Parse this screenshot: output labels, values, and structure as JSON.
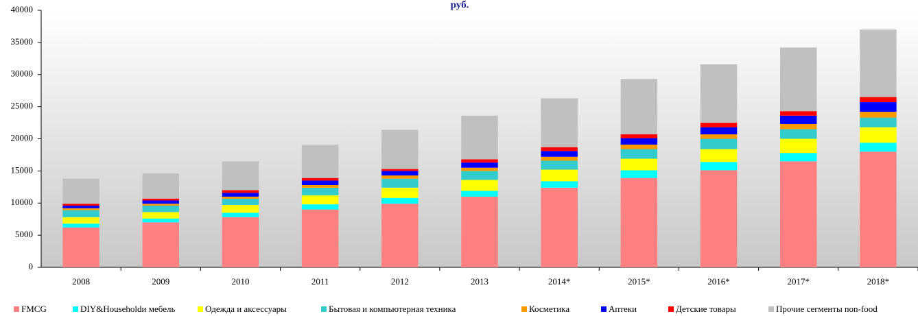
{
  "chart_data": {
    "type": "stacked_bar",
    "title": "руб.",
    "categories": [
      "2008",
      "2009",
      "2010",
      "2011",
      "2012",
      "2013",
      "2014*",
      "2015*",
      "2016*",
      "2017*",
      "2018*"
    ],
    "series": [
      {
        "name": "FMCG",
        "color": "#ff8080",
        "values": [
          6200,
          7000,
          7800,
          9000,
          9900,
          11000,
          12400,
          13900,
          15100,
          16500,
          18000
        ]
      },
      {
        "name": "DIY&Householdи мебель",
        "color": "#00ffff",
        "values": [
          600,
          600,
          700,
          800,
          900,
          900,
          1000,
          1200,
          1300,
          1300,
          1400
        ]
      },
      {
        "name": "Одежда и аксессуары",
        "color": "#ffff00",
        "values": [
          1000,
          1000,
          1200,
          1400,
          1600,
          1700,
          1800,
          1800,
          2000,
          2200,
          2400
        ]
      },
      {
        "name": "Бытовая и компьютерная техника",
        "color": "#33cccc",
        "values": [
          1100,
          1000,
          1000,
          1200,
          1400,
          1400,
          1400,
          1500,
          1600,
          1500,
          1500
        ]
      },
      {
        "name": "Косметика",
        "color": "#ff9900",
        "values": [
          300,
          300,
          300,
          400,
          500,
          500,
          600,
          700,
          700,
          800,
          900
        ]
      },
      {
        "name": "Аптеки",
        "color": "#0000ff",
        "values": [
          400,
          500,
          600,
          700,
          700,
          800,
          900,
          1000,
          1100,
          1300,
          1500
        ]
      },
      {
        "name": "Детские товары",
        "color": "#ff0000",
        "values": [
          300,
          300,
          400,
          400,
          300,
          500,
          600,
          600,
          700,
          700,
          800
        ]
      },
      {
        "name": "Прочие сегменты non-food",
        "color": "#c0c0c0",
        "values": [
          3900,
          3900,
          4500,
          5200,
          6100,
          6800,
          7600,
          8600,
          9100,
          9900,
          10500
        ]
      }
    ],
    "ylim": [
      0,
      40000
    ],
    "yticks": [
      0,
      5000,
      10000,
      15000,
      20000,
      25000,
      30000,
      35000,
      40000
    ],
    "legend": "bottom"
  }
}
